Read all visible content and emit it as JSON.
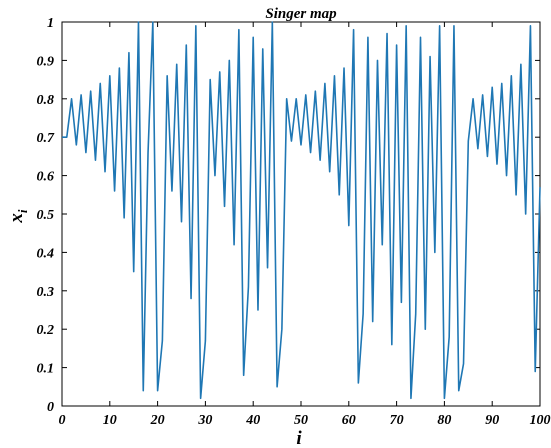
{
  "chart_data": {
    "type": "line",
    "title": "Singer map",
    "xlabel": "i",
    "ylabel": "x",
    "ylabel_subscript": "i",
    "xlim": [
      0,
      100
    ],
    "ylim": [
      0,
      1
    ],
    "x_ticks": [
      "0",
      "10",
      "20",
      "30",
      "40",
      "50",
      "60",
      "70",
      "80",
      "90",
      "100"
    ],
    "y_ticks": [
      "0",
      "0.1",
      "0.2",
      "0.3",
      "0.4",
      "0.5",
      "0.6",
      "0.7",
      "0.8",
      "0.9",
      "1"
    ],
    "grid": false,
    "line_color": "#1f77b4",
    "series": [
      {
        "x": [
          0,
          1,
          2,
          3,
          4,
          5,
          6,
          7,
          8,
          9,
          10,
          11,
          12,
          13,
          14,
          15,
          16,
          17,
          18,
          19,
          20,
          21,
          22,
          23,
          24,
          25,
          26,
          27,
          28,
          29,
          30,
          31,
          32,
          33,
          34,
          35,
          36,
          37,
          38,
          39,
          40,
          41,
          42,
          43,
          44,
          45,
          46,
          47,
          48,
          49,
          50,
          51,
          52,
          53,
          54,
          55,
          56,
          57,
          58,
          59,
          60,
          61,
          62,
          63,
          64,
          65,
          66,
          67,
          68,
          69,
          70,
          71,
          72,
          73,
          74,
          75,
          76,
          77,
          78,
          79,
          80,
          81,
          82,
          83,
          84,
          85,
          86,
          87,
          88,
          89,
          90,
          91,
          92,
          93,
          94,
          95,
          96,
          97,
          98,
          99,
          100
        ],
        "values": [
          0.7,
          0.7,
          0.8,
          0.68,
          0.81,
          0.66,
          0.82,
          0.64,
          0.84,
          0.61,
          0.86,
          0.56,
          0.88,
          0.49,
          0.92,
          0.35,
          1.0,
          0.04,
          0.66,
          1.0,
          0.04,
          0.17,
          0.86,
          0.56,
          0.89,
          0.48,
          0.94,
          0.28,
          0.99,
          0.02,
          0.17,
          0.85,
          0.6,
          0.87,
          0.52,
          0.9,
          0.42,
          0.98,
          0.08,
          0.31,
          0.96,
          0.25,
          0.93,
          0.36,
          1.0,
          0.05,
          0.2,
          0.8,
          0.69,
          0.8,
          0.68,
          0.81,
          0.66,
          0.82,
          0.64,
          0.84,
          0.61,
          0.86,
          0.55,
          0.88,
          0.47,
          0.98,
          0.06,
          0.24,
          0.96,
          0.22,
          0.9,
          0.42,
          0.97,
          0.16,
          0.94,
          0.27,
          0.99,
          0.02,
          0.24,
          0.96,
          0.2,
          0.91,
          0.4,
          0.99,
          0.02,
          0.18,
          0.99,
          0.04,
          0.11,
          0.69,
          0.8,
          0.67,
          0.81,
          0.65,
          0.83,
          0.63,
          0.84,
          0.6,
          0.86,
          0.55,
          0.89,
          0.5,
          0.99,
          0.09,
          0.57
        ]
      }
    ]
  }
}
